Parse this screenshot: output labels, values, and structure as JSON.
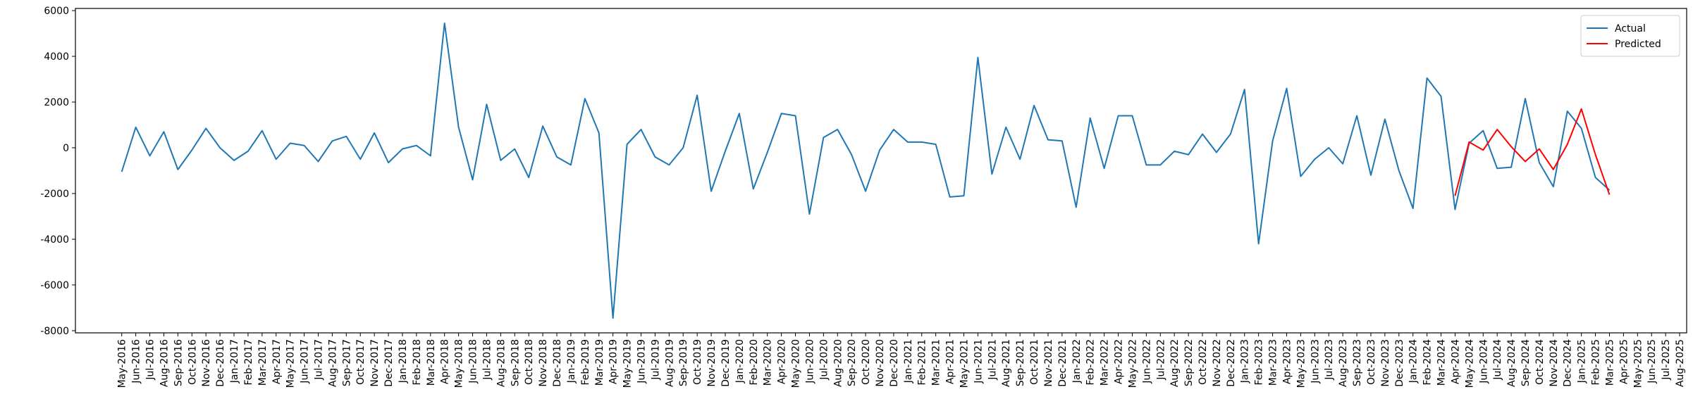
{
  "chart_data": {
    "type": "line",
    "categories": [
      "May-2016",
      "Jun-2016",
      "Jul-2016",
      "Aug-2016",
      "Sep-2016",
      "Oct-2016",
      "Nov-2016",
      "Dec-2016",
      "Jan-2017",
      "Feb-2017",
      "Mar-2017",
      "Apr-2017",
      "May-2017",
      "Jun-2017",
      "Jul-2017",
      "Aug-2017",
      "Sep-2017",
      "Oct-2017",
      "Nov-2017",
      "Dec-2017",
      "Jan-2018",
      "Feb-2018",
      "Mar-2018",
      "Apr-2018",
      "May-2018",
      "Jun-2018",
      "Jul-2018",
      "Aug-2018",
      "Sep-2018",
      "Oct-2018",
      "Nov-2018",
      "Dec-2018",
      "Jan-2019",
      "Feb-2019",
      "Mar-2019",
      "Apr-2019",
      "May-2019",
      "Jun-2019",
      "Jul-2019",
      "Aug-2019",
      "Sep-2019",
      "Oct-2019",
      "Nov-2019",
      "Dec-2019",
      "Jan-2020",
      "Feb-2020",
      "Mar-2020",
      "Apr-2020",
      "May-2020",
      "Jun-2020",
      "Jul-2020",
      "Aug-2020",
      "Sep-2020",
      "Oct-2020",
      "Nov-2020",
      "Dec-2020",
      "Jan-2021",
      "Feb-2021",
      "Mar-2021",
      "Apr-2021",
      "May-2021",
      "Jun-2021",
      "Jul-2021",
      "Aug-2021",
      "Sep-2021",
      "Oct-2021",
      "Nov-2021",
      "Dec-2021",
      "Jan-2022",
      "Feb-2022",
      "Mar-2022",
      "Apr-2022",
      "May-2022",
      "Jun-2022",
      "Jul-2022",
      "Aug-2022",
      "Sep-2022",
      "Oct-2022",
      "Nov-2022",
      "Dec-2022",
      "Jan-2023",
      "Feb-2023",
      "Mar-2023",
      "Apr-2023",
      "May-2023",
      "Jun-2023",
      "Jul-2023",
      "Aug-2023",
      "Sep-2023",
      "Oct-2023",
      "Nov-2023",
      "Dec-2023",
      "Jan-2024",
      "Feb-2024",
      "Mar-2024",
      "Apr-2024",
      "May-2024",
      "Jun-2024",
      "Jul-2024",
      "Aug-2024",
      "Sep-2024",
      "Oct-2024",
      "Nov-2024",
      "Dec-2024",
      "Jan-2025",
      "Feb-2025",
      "Mar-2025",
      "Apr-2025",
      "May-2025",
      "Jun-2025",
      "Jul-2025",
      "Aug-2025"
    ],
    "series": [
      {
        "name": "Actual",
        "color": "#1f77b4",
        "values": [
          -1050,
          900,
          -350,
          700,
          -950,
          -100,
          850,
          0,
          -550,
          -150,
          750,
          -500,
          200,
          100,
          -600,
          300,
          500,
          -500,
          650,
          -650,
          -50,
          100,
          -350,
          5450,
          900,
          -1400,
          1900,
          -550,
          -50,
          -1300,
          950,
          -400,
          -750,
          2150,
          650,
          -7450,
          150,
          800,
          -400,
          -750,
          0,
          2300,
          -1900,
          -150,
          1500,
          -1800,
          -200,
          1500,
          1400,
          -2900,
          450,
          800,
          -300,
          -1900,
          -100,
          800,
          250,
          250,
          150,
          -2150,
          -2100,
          3950,
          -1150,
          900,
          -500,
          1850,
          350,
          300,
          -2600,
          1300,
          -900,
          1400,
          1400,
          -750,
          -750,
          -150,
          -300,
          600,
          -200,
          600,
          2550,
          -4200,
          300,
          2600,
          -1250,
          -500,
          0,
          -700,
          1400,
          -1200,
          1250,
          -1000,
          -2650,
          3050,
          2250,
          -2700,
          200,
          750,
          -900,
          -850,
          2150,
          -650,
          -1700,
          1600,
          850,
          -1300,
          -1850,
          null,
          null,
          null,
          null,
          null
        ]
      },
      {
        "name": "Predicted",
        "color": "#ff0000",
        "values": [
          null,
          null,
          null,
          null,
          null,
          null,
          null,
          null,
          null,
          null,
          null,
          null,
          null,
          null,
          null,
          null,
          null,
          null,
          null,
          null,
          null,
          null,
          null,
          null,
          null,
          null,
          null,
          null,
          null,
          null,
          null,
          null,
          null,
          null,
          null,
          null,
          null,
          null,
          null,
          null,
          null,
          null,
          null,
          null,
          null,
          null,
          null,
          null,
          null,
          null,
          null,
          null,
          null,
          null,
          null,
          null,
          null,
          null,
          null,
          null,
          null,
          null,
          null,
          null,
          null,
          null,
          null,
          null,
          null,
          null,
          null,
          null,
          null,
          null,
          null,
          null,
          null,
          null,
          null,
          null,
          null,
          null,
          null,
          null,
          null,
          null,
          null,
          null,
          null,
          null,
          null,
          null,
          null,
          null,
          null,
          -2100,
          250,
          -100,
          800,
          50,
          -600,
          -50,
          -950,
          150,
          1700,
          -300,
          -2050,
          null,
          null,
          null,
          null,
          null
        ]
      }
    ],
    "ylim": [
      -8095,
      6095
    ],
    "yticks": [
      -8000,
      -6000,
      -4000,
      -2000,
      0,
      2000,
      4000,
      6000
    ],
    "legend": "upper right",
    "grid": false
  }
}
